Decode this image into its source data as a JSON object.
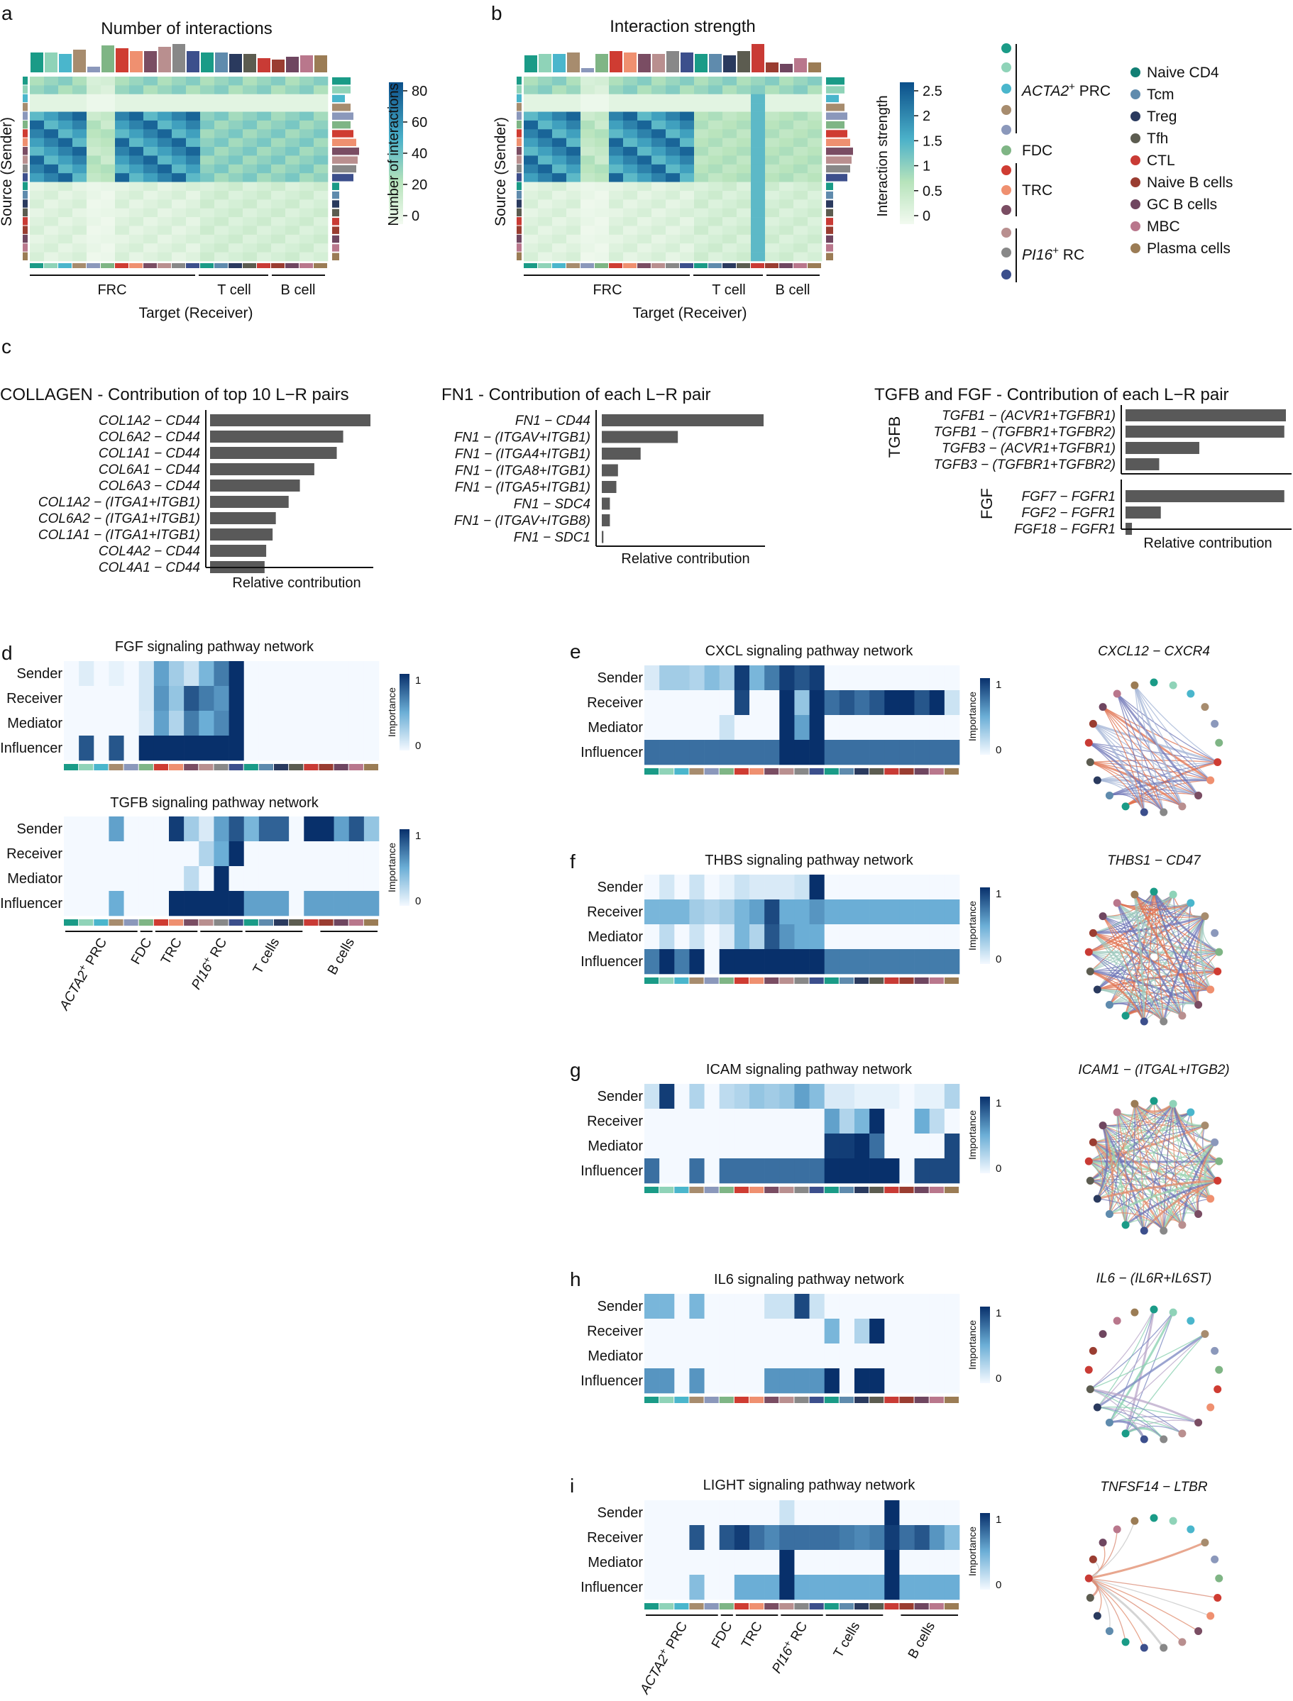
{
  "colors": {
    "cells": [
      "#1a9b87",
      "#8fd3b8",
      "#4ab6cc",
      "#a78c6e",
      "#8b98bb",
      "#7fb585",
      "#cf3c32",
      "#ef9070",
      "#7a4d63",
      "#b98f8f",
      "#888888",
      "#3c4f8c",
      "#1a9b87",
      "#5f8bad",
      "#2a3a5e",
      "#5c5c50",
      "#c93b35",
      "#9a3d31",
      "#6f4660",
      "#b9778c",
      "#9b7c55"
    ],
    "groups": [
      "#1a9b87",
      "#8fd3b8",
      "#4ab6cc",
      "#a78c6e",
      "#8b98bb",
      "#7fb585",
      "#cf3c32",
      "#ef9070",
      "#7a4d63",
      "#b98f8f",
      "#888888",
      "#3c4f8c"
    ],
    "tcell_legend": [
      "#127f74",
      "#5f8bad",
      "#2a3a5e",
      "#5c5c50",
      "#c93b35",
      "#9a3d31",
      "#6f4660",
      "#b9778c",
      "#9b7c55"
    ],
    "bar": "#595959",
    "heat_low": "#f2faf0",
    "heat_high": "#0b4f8a",
    "imp_low": "#f4f9ff",
    "imp_high": "#08306b"
  },
  "labels": {
    "a": "a",
    "b": "b",
    "c": "c",
    "d": "d",
    "e": "e",
    "f": "f",
    "g": "g",
    "h": "h",
    "i": "i"
  },
  "heat_a": {
    "title": "Number of interactions",
    "ylabel": "Source (Sender)",
    "xlabel": "Target (Receiver)",
    "groups": [
      "FRC",
      "T cell",
      "B cell"
    ],
    "colorbar_title": "Number of interactions",
    "colorbar_ticks": [
      "80",
      "60",
      "40",
      "20",
      "0"
    ]
  },
  "heat_b": {
    "title": "Interaction strength",
    "ylabel": "Source (Sender)",
    "xlabel": "Target (Receiver)",
    "groups": [
      "FRC",
      "T cell",
      "B cell"
    ],
    "colorbar_title": "Interaction strength",
    "colorbar_ticks": [
      "2.5",
      "2",
      "1.5",
      "1",
      "0.5",
      "0"
    ]
  },
  "legend": {
    "frc_groups": [
      "ACTA2",
      "+",
      " PRC",
      "FDC",
      "TRC",
      "PI16",
      "+",
      " RC"
    ],
    "cells": [
      "Naive CD4",
      "Tcm",
      "Treg",
      "Tfh",
      "CTL",
      "Naive B cells",
      "GC B cells",
      "MBC",
      "Plasma cells"
    ]
  },
  "chart_data": [
    {
      "type": "bar",
      "title": "COLLAGEN - Contribution of top 10 L−R pairs",
      "xlabel": "Relative contribution",
      "categories": [
        "COL1A2 − CD44",
        "COL6A2 − CD44",
        "COL1A1 − CD44",
        "COL6A1 − CD44",
        "COL6A3 − CD44",
        "COL1A2 − (ITGA1+ITGB1)",
        "COL6A2 − (ITGA1+ITGB1)",
        "COL1A1 − (ITGA1+ITGB1)",
        "COL4A2 − CD44",
        "COL4A1 − CD44"
      ],
      "values": [
        1.0,
        0.83,
        0.79,
        0.65,
        0.56,
        0.49,
        0.41,
        0.39,
        0.35,
        0.34
      ]
    },
    {
      "type": "bar",
      "title": "FN1 - Contribution of each L−R pair",
      "xlabel": "Relative contribution",
      "categories": [
        "FN1 − CD44",
        "FN1 − (ITGAV+ITGB1)",
        "FN1 − (ITGA4+ITGB1)",
        "FN1 − (ITGA8+ITGB1)",
        "FN1 − (ITGA5+ITGB1)",
        "FN1 − SDC4",
        "FN1 − (ITGAV+ITGB8)",
        "FN1 − SDC1"
      ],
      "values": [
        1.0,
        0.47,
        0.24,
        0.1,
        0.09,
        0.05,
        0.05,
        0.01
      ]
    },
    {
      "type": "bar",
      "title": "TGFB and FGF - Contribution of each L−R pair",
      "xlabel": "Relative contribution",
      "groups": [
        "TGFB",
        "FGF"
      ],
      "categories": [
        "TGFB1 − (ACVR1+TGFBR1)",
        "TGFB1 − (TGFBR1+TGFBR2)",
        "TGFB3 − (ACVR1+TGFBR1)",
        "TGFB3 − (TGFBR1+TGFBR2)",
        "FGF7 − FGFR1",
        "FGF2 − FGFR1",
        "FGF18 − FGFR1"
      ],
      "values": [
        1.0,
        0.99,
        0.46,
        0.21,
        0.99,
        0.22,
        0.04
      ]
    },
    {
      "type": "heatmap",
      "title": "FGF signaling pathway network",
      "rows": [
        "Sender",
        "Receiver",
        "Mediator",
        "Influencer"
      ],
      "colorbar_title": "Importance",
      "colorbar_ticks": [
        "1",
        "0"
      ],
      "values": [
        [
          0,
          0.08,
          0,
          0.05,
          0,
          0.12,
          0.55,
          0.3,
          0.15,
          0.45,
          0.7,
          1,
          0,
          0,
          0,
          0,
          0,
          0,
          0,
          0,
          0
        ],
        [
          0,
          0,
          0,
          0,
          0,
          0.12,
          0.6,
          0.35,
          0.85,
          0.7,
          0.6,
          1,
          0,
          0,
          0,
          0,
          0,
          0,
          0,
          0,
          0
        ],
        [
          0,
          0,
          0,
          0,
          0,
          0.1,
          0.55,
          0.25,
          0.7,
          0.5,
          0.65,
          1,
          0,
          0,
          0,
          0,
          0,
          0,
          0,
          0,
          0
        ],
        [
          0,
          0.85,
          0,
          0.85,
          0,
          1,
          1,
          1,
          1,
          1,
          1,
          1,
          0,
          0,
          0,
          0,
          0,
          0,
          0,
          0,
          0
        ]
      ]
    },
    {
      "type": "heatmap",
      "title": "TGFB signaling pathway network",
      "rows": [
        "Sender",
        "Receiver",
        "Mediator",
        "Influencer"
      ],
      "colorbar_title": "Importance",
      "colorbar_ticks": [
        "1",
        "0"
      ],
      "xticks": [
        "ACTA2+ PRC",
        "FDC",
        "TRC",
        "PI16+ RC",
        "T cells",
        "B cells"
      ],
      "values": [
        [
          0,
          0,
          0,
          0.55,
          0,
          0,
          0,
          0.95,
          0.3,
          0.1,
          0.55,
          0.85,
          0.45,
          0.8,
          0.8,
          0,
          1,
          1,
          0.55,
          0.85,
          0.35
        ],
        [
          0,
          0,
          0,
          0,
          0,
          0,
          0,
          0,
          0,
          0.25,
          0.5,
          1,
          0,
          0,
          0,
          0,
          0,
          0,
          0,
          0,
          0
        ],
        [
          0,
          0,
          0,
          0,
          0,
          0,
          0,
          0,
          0.2,
          0,
          1,
          0,
          0,
          0,
          0,
          0,
          0,
          0,
          0,
          0,
          0
        ],
        [
          0,
          0,
          0,
          0.5,
          0,
          0,
          0,
          1,
          1,
          1,
          1,
          1,
          0.55,
          0.55,
          0.55,
          0,
          0.55,
          0.55,
          0.55,
          0.55,
          0.55
        ]
      ]
    },
    {
      "type": "heatmap",
      "title": "CXCL signaling pathway network",
      "rows": [
        "Sender",
        "Receiver",
        "Mediator",
        "Influencer"
      ],
      "colorbar_title": "Importance",
      "colorbar_ticks": [
        "1",
        "0"
      ],
      "values": [
        [
          0.1,
          0.3,
          0.3,
          0.25,
          0.4,
          0.3,
          0.95,
          0.45,
          0.7,
          0.95,
          0.85,
          0.95,
          0,
          0,
          0,
          0,
          0,
          0,
          0,
          0,
          0
        ],
        [
          0,
          0,
          0,
          0,
          0,
          0,
          0.9,
          0,
          0,
          1,
          0.35,
          1,
          0.75,
          0.85,
          0.75,
          0.85,
          1,
          1,
          0.85,
          1,
          0.15
        ],
        [
          0,
          0,
          0,
          0,
          0,
          0.15,
          0,
          0,
          0,
          1,
          0.55,
          1,
          0,
          0,
          0,
          0,
          0,
          0,
          0,
          0,
          0
        ],
        [
          0.75,
          0.75,
          0.75,
          0.75,
          0.75,
          0.75,
          0.75,
          0.75,
          0.75,
          1,
          1,
          1,
          0.75,
          0.75,
          0.75,
          0.75,
          0.75,
          0.75,
          0.75,
          0.75,
          0.75
        ]
      ],
      "network": "CXCL12 − CXCR4"
    },
    {
      "type": "heatmap",
      "title": "THBS signaling pathway network",
      "rows": [
        "Sender",
        "Receiver",
        "Mediator",
        "Influencer"
      ],
      "colorbar_title": "Importance",
      "colorbar_ticks": [
        "1",
        "0"
      ],
      "values": [
        [
          0,
          0.12,
          0,
          0.15,
          0,
          0.05,
          0.15,
          0.1,
          0.1,
          0.1,
          0.15,
          1,
          0,
          0,
          0,
          0,
          0,
          0,
          0,
          0,
          0
        ],
        [
          0.45,
          0.45,
          0.45,
          0.3,
          0.25,
          0.3,
          0.45,
          0.55,
          0.9,
          0.5,
          0.5,
          0.6,
          0.5,
          0.5,
          0.5,
          0.5,
          0.5,
          0.5,
          0.5,
          0.5,
          0.5
        ],
        [
          0,
          0.2,
          0,
          0.15,
          0,
          0.1,
          0.45,
          0.25,
          0.85,
          0.6,
          0.5,
          0.5,
          0,
          0,
          0,
          0,
          0,
          0,
          0,
          0,
          0
        ],
        [
          0.7,
          1,
          0.7,
          1,
          0,
          1,
          1,
          1,
          1,
          1,
          1,
          1,
          0.7,
          0.7,
          0.7,
          0.7,
          0.7,
          0.7,
          0.7,
          0.7,
          0.7
        ]
      ],
      "network": "THBS1 − CD47"
    },
    {
      "type": "heatmap",
      "title": "ICAM signaling pathway network",
      "rows": [
        "Sender",
        "Receiver",
        "Mediator",
        "Influencer"
      ],
      "colorbar_title": "Importance",
      "colorbar_ticks": [
        "1",
        "0"
      ],
      "values": [
        [
          0.15,
          0.95,
          0,
          0.25,
          0,
          0.2,
          0.25,
          0.35,
          0.3,
          0.35,
          0.55,
          0.4,
          0.1,
          0.1,
          0.05,
          0.05,
          0.05,
          0,
          0.05,
          0.05,
          0.25
        ],
        [
          0,
          0,
          0,
          0,
          0,
          0,
          0,
          0,
          0,
          0,
          0,
          0,
          0.55,
          0.25,
          0.45,
          1,
          0,
          0,
          0.5,
          0.2,
          0
        ],
        [
          0,
          0,
          0,
          0,
          0,
          0,
          0,
          0,
          0,
          0,
          0,
          0,
          0.95,
          0.95,
          1,
          0.75,
          0,
          0,
          0,
          0,
          0.9
        ],
        [
          0.75,
          0,
          0,
          0.75,
          0,
          0.75,
          0.75,
          0.75,
          0.75,
          0.75,
          0.75,
          0.75,
          1,
          1,
          1,
          1,
          1,
          0,
          0.9,
          0.9,
          0.9
        ]
      ],
      "network": "ICAM1 − (ITGAL+ITGB2)"
    },
    {
      "type": "heatmap",
      "title": "IL6 signaling pathway network",
      "rows": [
        "Sender",
        "Receiver",
        "Mediator",
        "Influencer"
      ],
      "colorbar_title": "Importance",
      "colorbar_ticks": [
        "1",
        "0"
      ],
      "values": [
        [
          0.45,
          0.45,
          0,
          0.45,
          0,
          0,
          0,
          0,
          0.15,
          0.15,
          0.9,
          0.15,
          0,
          0,
          0,
          0,
          0,
          0,
          0,
          0,
          0
        ],
        [
          0,
          0,
          0,
          0,
          0,
          0,
          0,
          0,
          0,
          0,
          0,
          0,
          0.45,
          0,
          0.25,
          1,
          0,
          0,
          0,
          0,
          0
        ],
        [
          0,
          0,
          0,
          0,
          0,
          0,
          0,
          0,
          0,
          0,
          0,
          0,
          0,
          0,
          0,
          0,
          0,
          0,
          0,
          0,
          0
        ],
        [
          0.6,
          0.6,
          0,
          0.6,
          0,
          0,
          0,
          0,
          0.6,
          0.6,
          0.6,
          0.6,
          1,
          0,
          1,
          1,
          0,
          0,
          0,
          0,
          0
        ]
      ],
      "network": "IL6 − (IL6R+IL6ST)"
    },
    {
      "type": "heatmap",
      "title": "LIGHT signaling pathway network",
      "rows": [
        "Sender",
        "Receiver",
        "Mediator",
        "Influencer"
      ],
      "colorbar_title": "Importance",
      "colorbar_ticks": [
        "1",
        "0"
      ],
      "xticks": [
        "ACTA2+ PRC",
        "FDC",
        "TRC",
        "PI16+ RC",
        "T cells",
        "B cells"
      ],
      "values": [
        [
          0,
          0,
          0,
          0,
          0,
          0,
          0,
          0,
          0,
          0.15,
          0,
          0,
          0,
          0,
          0,
          0,
          1,
          0,
          0,
          0,
          0
        ],
        [
          0,
          0,
          0,
          0.85,
          0,
          0.85,
          0.95,
          0.75,
          0.65,
          0.75,
          0.75,
          0.75,
          0.75,
          0.7,
          0.65,
          0.7,
          0.95,
          0.75,
          0.85,
          0.6,
          0.4
        ],
        [
          0,
          0,
          0,
          0,
          0,
          0,
          0,
          0,
          0,
          1,
          0,
          0,
          0,
          0,
          0,
          0,
          1,
          0,
          0,
          0,
          0
        ],
        [
          0,
          0,
          0,
          0.4,
          0,
          0,
          0.5,
          0.5,
          0.5,
          1,
          0.5,
          0.5,
          0.5,
          0.5,
          0.5,
          0.5,
          1,
          0.5,
          0.5,
          0.5,
          0.5
        ]
      ],
      "network": "TNFSF14 − LTBR"
    }
  ]
}
